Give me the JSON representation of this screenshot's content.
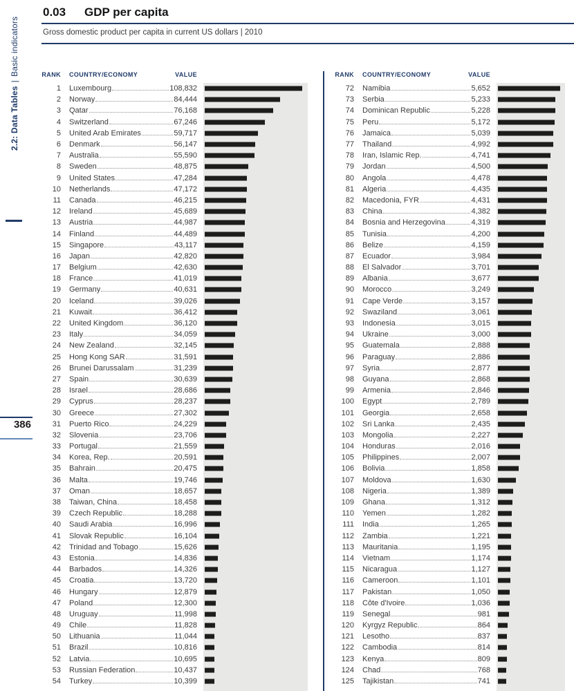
{
  "sidebar": {
    "section": "2.2: Data Tables",
    "separator": "|",
    "category": "Basic indicators",
    "page_number": "386"
  },
  "header": {
    "number": "0.03",
    "title": "GDP per capita",
    "subtitle": "Gross domestic product per capita in current US dollars | 2010"
  },
  "table": {
    "headers": {
      "rank": "RANK",
      "country": "COUNTRY/ECONOMY",
      "value": "VALUE"
    },
    "bar_color": "#1d1d1b",
    "panel_color": "#e8e8e6",
    "accent_color": "#1f3a68",
    "columns": [
      {
        "rows": [
          {
            "rank": "1",
            "country": "Luxembourg",
            "value": "108,832"
          },
          {
            "rank": "2",
            "country": "Norway",
            "value": "84,444"
          },
          {
            "rank": "3",
            "country": "Qatar",
            "value": "76,168"
          },
          {
            "rank": "4",
            "country": "Switzerland",
            "value": "67,246"
          },
          {
            "rank": "5",
            "country": "United Arab Emirates",
            "value": "59,717"
          },
          {
            "rank": "6",
            "country": "Denmark",
            "value": "56,147"
          },
          {
            "rank": "7",
            "country": "Australia",
            "value": "55,590"
          },
          {
            "rank": "8",
            "country": "Sweden",
            "value": "48,875"
          },
          {
            "rank": "9",
            "country": "United States",
            "value": "47,284"
          },
          {
            "rank": "10",
            "country": "Netherlands",
            "value": "47,172"
          },
          {
            "rank": "11",
            "country": "Canada",
            "value": "46,215"
          },
          {
            "rank": "12",
            "country": "Ireland",
            "value": "45,689"
          },
          {
            "rank": "13",
            "country": "Austria",
            "value": "44,987"
          },
          {
            "rank": "14",
            "country": "Finland",
            "value": "44,489"
          },
          {
            "rank": "15",
            "country": "Singapore",
            "value": "43,117"
          },
          {
            "rank": "16",
            "country": "Japan",
            "value": "42,820"
          },
          {
            "rank": "17",
            "country": "Belgium",
            "value": "42,630"
          },
          {
            "rank": "18",
            "country": "France",
            "value": "41,019"
          },
          {
            "rank": "19",
            "country": "Germany",
            "value": "40,631"
          },
          {
            "rank": "20",
            "country": "Iceland",
            "value": "39,026"
          },
          {
            "rank": "21",
            "country": "Kuwait",
            "value": "36,412"
          },
          {
            "rank": "22",
            "country": "United Kingdom",
            "value": "36,120"
          },
          {
            "rank": "23",
            "country": "Italy",
            "value": "34,059"
          },
          {
            "rank": "24",
            "country": "New Zealand",
            "value": "32,145"
          },
          {
            "rank": "25",
            "country": "Hong Kong SAR",
            "value": "31,591"
          },
          {
            "rank": "26",
            "country": "Brunei Darussalam",
            "value": "31,239"
          },
          {
            "rank": "27",
            "country": "Spain",
            "value": "30,639"
          },
          {
            "rank": "28",
            "country": "Israel",
            "value": "28,686"
          },
          {
            "rank": "29",
            "country": "Cyprus",
            "value": "28,237"
          },
          {
            "rank": "30",
            "country": "Greece",
            "value": "27,302"
          },
          {
            "rank": "31",
            "country": "Puerto Rico",
            "value": "24,229"
          },
          {
            "rank": "32",
            "country": "Slovenia",
            "value": "23,706"
          },
          {
            "rank": "33",
            "country": "Portugal",
            "value": "21,559"
          },
          {
            "rank": "34",
            "country": "Korea, Rep.",
            "value": "20,591"
          },
          {
            "rank": "35",
            "country": "Bahrain",
            "value": "20,475"
          },
          {
            "rank": "36",
            "country": "Malta",
            "value": "19,746"
          },
          {
            "rank": "37",
            "country": "Oman",
            "value": "18,657"
          },
          {
            "rank": "38",
            "country": "Taiwan, China",
            "value": "18,458"
          },
          {
            "rank": "39",
            "country": "Czech Republic",
            "value": "18,288"
          },
          {
            "rank": "40",
            "country": "Saudi Arabia",
            "value": "16,996"
          },
          {
            "rank": "41",
            "country": "Slovak Republic",
            "value": "16,104"
          },
          {
            "rank": "42",
            "country": "Trinidad and Tobago",
            "value": "15,626"
          },
          {
            "rank": "43",
            "country": "Estonia",
            "value": "14,836"
          },
          {
            "rank": "44",
            "country": "Barbados",
            "value": "14,326"
          },
          {
            "rank": "45",
            "country": "Croatia",
            "value": "13,720"
          },
          {
            "rank": "46",
            "country": "Hungary",
            "value": "12,879"
          },
          {
            "rank": "47",
            "country": "Poland",
            "value": "12,300"
          },
          {
            "rank": "48",
            "country": "Uruguay",
            "value": "11,998"
          },
          {
            "rank": "49",
            "country": "Chile",
            "value": "11,828"
          },
          {
            "rank": "50",
            "country": "Lithuania",
            "value": "11,044"
          },
          {
            "rank": "51",
            "country": "Brazil",
            "value": "10,816"
          },
          {
            "rank": "52",
            "country": "Latvia",
            "value": "10,695"
          },
          {
            "rank": "53",
            "country": "Russian Federation",
            "value": "10,437"
          },
          {
            "rank": "54",
            "country": "Turkey",
            "value": "10,399"
          }
        ]
      },
      {
        "rows": [
          {
            "rank": "72",
            "country": "Namibia",
            "value": "5,652"
          },
          {
            "rank": "73",
            "country": "Serbia",
            "value": "5,233"
          },
          {
            "rank": "74",
            "country": "Dominican Republic",
            "value": "5,228"
          },
          {
            "rank": "75",
            "country": "Peru",
            "value": "5,172"
          },
          {
            "rank": "76",
            "country": "Jamaica",
            "value": "5,039"
          },
          {
            "rank": "77",
            "country": "Thailand",
            "value": "4,992"
          },
          {
            "rank": "78",
            "country": "Iran, Islamic Rep.",
            "value": "4,741"
          },
          {
            "rank": "79",
            "country": "Jordan",
            "value": "4,500"
          },
          {
            "rank": "80",
            "country": "Angola",
            "value": "4,478"
          },
          {
            "rank": "81",
            "country": "Algeria",
            "value": "4,435"
          },
          {
            "rank": "82",
            "country": "Macedonia, FYR",
            "value": "4,431"
          },
          {
            "rank": "83",
            "country": "China",
            "value": "4,382"
          },
          {
            "rank": "84",
            "country": "Bosnia and Herzegovina",
            "value": "4,319"
          },
          {
            "rank": "85",
            "country": "Tunisia",
            "value": "4,200"
          },
          {
            "rank": "86",
            "country": "Belize",
            "value": "4,159"
          },
          {
            "rank": "87",
            "country": "Ecuador",
            "value": "3,984"
          },
          {
            "rank": "88",
            "country": "El Salvador",
            "value": "3,701"
          },
          {
            "rank": "89",
            "country": "Albania",
            "value": "3,677"
          },
          {
            "rank": "90",
            "country": "Morocco",
            "value": "3,249"
          },
          {
            "rank": "91",
            "country": "Cape Verde",
            "value": "3,157"
          },
          {
            "rank": "92",
            "country": "Swaziland",
            "value": "3,061"
          },
          {
            "rank": "93",
            "country": "Indonesia",
            "value": "3,015"
          },
          {
            "rank": "94",
            "country": "Ukraine",
            "value": "3,000"
          },
          {
            "rank": "95",
            "country": "Guatemala",
            "value": "2,888"
          },
          {
            "rank": "96",
            "country": "Paraguay",
            "value": "2,886"
          },
          {
            "rank": "97",
            "country": "Syria",
            "value": "2,877"
          },
          {
            "rank": "98",
            "country": "Guyana",
            "value": "2,868"
          },
          {
            "rank": "99",
            "country": "Armenia",
            "value": "2,846"
          },
          {
            "rank": "100",
            "country": "Egypt",
            "value": "2,789"
          },
          {
            "rank": "101",
            "country": "Georgia",
            "value": "2,658"
          },
          {
            "rank": "102",
            "country": "Sri Lanka",
            "value": "2,435"
          },
          {
            "rank": "103",
            "country": "Mongolia",
            "value": "2,227"
          },
          {
            "rank": "104",
            "country": "Honduras",
            "value": "2,016"
          },
          {
            "rank": "105",
            "country": "Philippines",
            "value": "2,007"
          },
          {
            "rank": "106",
            "country": "Bolivia",
            "value": "1,858"
          },
          {
            "rank": "107",
            "country": "Moldova",
            "value": "1,630"
          },
          {
            "rank": "108",
            "country": "Nigeria",
            "value": "1,389"
          },
          {
            "rank": "109",
            "country": "Ghana",
            "value": "1,312"
          },
          {
            "rank": "110",
            "country": "Yemen",
            "value": "1,282"
          },
          {
            "rank": "111",
            "country": "India",
            "value": "1,265"
          },
          {
            "rank": "112",
            "country": "Zambia",
            "value": "1,221"
          },
          {
            "rank": "113",
            "country": "Mauritania",
            "value": "1,195"
          },
          {
            "rank": "114",
            "country": "Vietnam",
            "value": "1,174"
          },
          {
            "rank": "115",
            "country": "Nicaragua",
            "value": "1,127"
          },
          {
            "rank": "116",
            "country": "Cameroon",
            "value": "1,101"
          },
          {
            "rank": "117",
            "country": "Pakistan",
            "value": "1,050"
          },
          {
            "rank": "118",
            "country": "Côte d'Ivoire",
            "value": "1,036"
          },
          {
            "rank": "119",
            "country": "Senegal",
            "value": "981"
          },
          {
            "rank": "120",
            "country": "Kyrgyz Republic",
            "value": "864"
          },
          {
            "rank": "121",
            "country": "Lesotho",
            "value": "837"
          },
          {
            "rank": "122",
            "country": "Cambodia",
            "value": "814"
          },
          {
            "rank": "123",
            "country": "Kenya",
            "value": "809"
          },
          {
            "rank": "124",
            "country": "Chad",
            "value": "768"
          },
          {
            "rank": "125",
            "country": "Tajikistan",
            "value": "741"
          }
        ]
      }
    ]
  }
}
